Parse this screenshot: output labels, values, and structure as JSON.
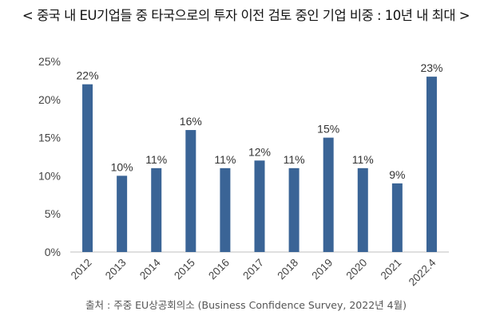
{
  "title": "< 중국 내 EU기업들 중 타국으로의 투자 이전 검토 중인 기업 비중 : 10년 내 최대 >",
  "source": "출처 : 주중 EU상공회의소 (Business Confidence Survey, 2022년 4월)",
  "chart_data": {
    "type": "bar",
    "title": "중국 내 EU기업들 중 타국으로의 투자 이전 검토 중인 기업 비중",
    "categories": [
      "2012",
      "2013",
      "2014",
      "2015",
      "2016",
      "2017",
      "2018",
      "2019",
      "2020",
      "2021",
      "2022.4"
    ],
    "values": [
      22,
      10,
      11,
      16,
      11,
      12,
      11,
      15,
      11,
      9,
      23
    ],
    "data_labels": [
      "22%",
      "10%",
      "11%",
      "16%",
      "11%",
      "12%",
      "11%",
      "15%",
      "11%",
      "9%",
      "23%"
    ],
    "yticks": [
      "0%",
      "5%",
      "10%",
      "15%",
      "20%",
      "25%"
    ],
    "ylim": [
      0,
      25
    ],
    "xlabel": "",
    "ylabel": "",
    "grid": false,
    "legend": "none",
    "bar_color": "#3a6496"
  }
}
